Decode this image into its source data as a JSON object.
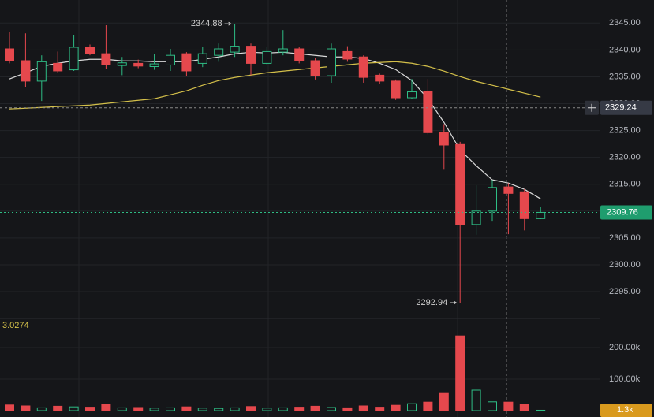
{
  "chart_data": {
    "type": "candlestick",
    "ylim": [
      2290.6,
      2349.3
    ],
    "yticks": [
      {
        "value": 2295,
        "label": "2295.00"
      },
      {
        "value": 2300,
        "label": "2300.00"
      },
      {
        "value": 2305,
        "label": "2305.00"
      },
      {
        "value": 2310,
        "label": "2310.00"
      },
      {
        "value": 2315,
        "label": "2315.00"
      },
      {
        "value": 2320,
        "label": "2320.00"
      },
      {
        "value": 2325,
        "label": "2325.00"
      },
      {
        "value": 2330,
        "label": "2330.00"
      },
      {
        "value": 2335,
        "label": "2335.00"
      },
      {
        "value": 2340,
        "label": "2340.00"
      },
      {
        "value": 2345,
        "label": "2345.00"
      }
    ],
    "grid": true,
    "up_color": "#2ebd85",
    "down_color": "#e5484d",
    "open": [
      2340.2,
      2338.0,
      2334.2,
      2337.5,
      2336.3,
      2340.5,
      2339.3,
      2337.1,
      2337.5,
      2336.9,
      2337.2,
      2339.3,
      2337.5,
      2339.0,
      2339.6,
      2340.7,
      2337.5,
      2339.6,
      2340.2,
      2338.0,
      2335.2,
      2339.7,
      2338.7,
      2335.3,
      2334.2,
      2331.1,
      2332.3,
      2324.6,
      2322.4,
      2307.5,
      2310.0,
      2314.5,
      2313.6,
      2308.6
    ],
    "high": [
      2343.4,
      2343.1,
      2339.0,
      2339.7,
      2342.8,
      2341.0,
      2344.6,
      2338.7,
      2338.2,
      2339.3,
      2340.2,
      2339.6,
      2340.5,
      2341.2,
      2344.88,
      2341.2,
      2340.5,
      2343.7,
      2340.5,
      2338.5,
      2341.2,
      2340.7,
      2339.0,
      2335.6,
      2334.5,
      2334.6,
      2334.6,
      2326.2,
      2322.9,
      2314.8,
      2315.8,
      2315.2,
      2314.1,
      2310.8
    ],
    "low": [
      2337.5,
      2333.1,
      2330.5,
      2335.8,
      2336.1,
      2339.0,
      2336.4,
      2335.3,
      2336.6,
      2336.3,
      2336.1,
      2335.2,
      2336.8,
      2337.8,
      2338.7,
      2335.3,
      2337.2,
      2339.0,
      2337.5,
      2334.5,
      2333.9,
      2337.8,
      2333.9,
      2333.6,
      2330.7,
      2330.9,
      2324.3,
      2317.7,
      2292.94,
      2305.6,
      2308.2,
      2305.7,
      2306.4,
      2308.5
    ],
    "close": [
      2338.0,
      2334.2,
      2337.8,
      2336.1,
      2340.5,
      2339.3,
      2337.2,
      2337.6,
      2337.0,
      2337.4,
      2339.0,
      2336.1,
      2339.3,
      2340.2,
      2340.7,
      2337.5,
      2339.7,
      2340.2,
      2338.0,
      2335.2,
      2340.2,
      2338.3,
      2334.9,
      2334.2,
      2331.1,
      2332.2,
      2324.6,
      2322.3,
      2307.5,
      2310.0,
      2314.4,
      2313.3,
      2308.6,
      2309.76
    ],
    "lines": [
      {
        "color": "#d9d9d9",
        "values": [
          2334.59,
          2335.76,
          2336.94,
          2337.52,
          2337.96,
          2338.26,
          2338.26,
          2337.96,
          2337.96,
          2337.82,
          2337.82,
          2337.82,
          2338.26,
          2338.7,
          2339.28,
          2339.57,
          2339.43,
          2339.57,
          2339.28,
          2338.99,
          2338.7,
          2338.7,
          2338.4,
          2337.52,
          2336.35,
          2334.3,
          2330.93,
          2326.52,
          2321.39,
          2318.46,
          2315.82,
          2315.23,
          2314.05,
          2312.29
        ]
      },
      {
        "color": "#d4c04a",
        "values": [
          2329.02,
          2329.16,
          2329.31,
          2329.46,
          2329.6,
          2329.75,
          2330.04,
          2330.34,
          2330.63,
          2330.92,
          2331.66,
          2332.39,
          2333.42,
          2334.3,
          2334.88,
          2335.32,
          2335.76,
          2336.06,
          2336.35,
          2336.64,
          2336.94,
          2337.23,
          2337.52,
          2337.67,
          2337.82,
          2337.52,
          2336.94,
          2336.06,
          2335.03,
          2334.15,
          2333.42,
          2332.68,
          2331.95,
          2331.22
        ]
      }
    ],
    "crosshair_price": 2329.24,
    "indicator_value": 3.0274,
    "volume": {
      "values": [
        18000,
        15000,
        9000,
        14000,
        12000,
        11000,
        20000,
        9000,
        10000,
        8000,
        9000,
        12000,
        8000,
        7000,
        9000,
        13000,
        8000,
        9000,
        11000,
        14000,
        10000,
        9000,
        15000,
        11000,
        17000,
        22000,
        27000,
        57000,
        237000,
        65000,
        28000,
        27000,
        20000,
        1300
      ],
      "ylim": [
        0,
        290000
      ],
      "yticks": [
        {
          "value": 100000,
          "label": "100.00k"
        },
        {
          "value": 200000,
          "label": "200.00k"
        }
      ],
      "last_label": "1.3k"
    }
  }
}
